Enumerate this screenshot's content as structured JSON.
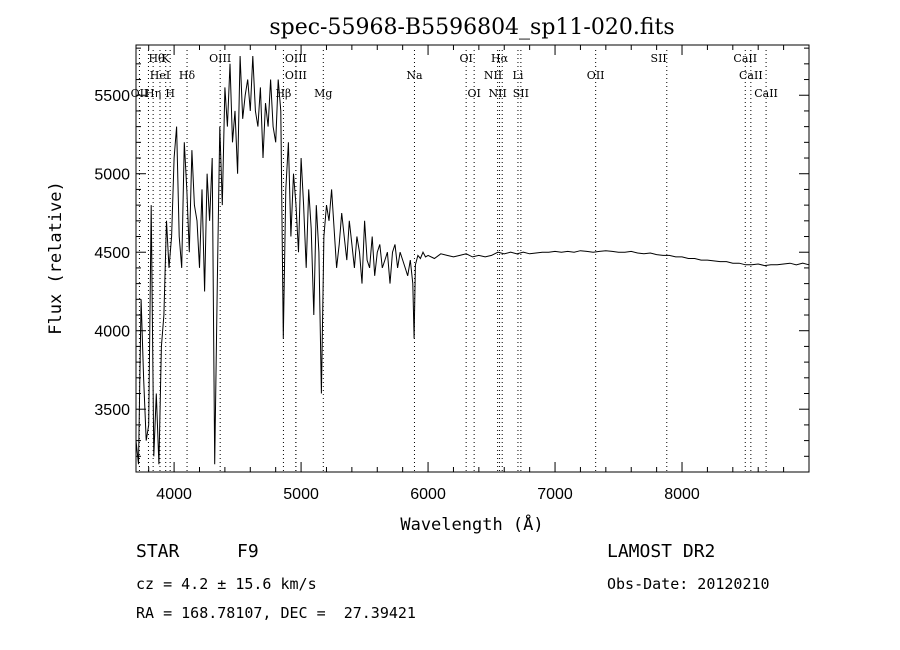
{
  "chart_data": {
    "type": "line",
    "title": "spec-55968-B5596804_sp11-020.fits",
    "xlabel": "Wavelength (Å)",
    "ylabel": "Flux (relative)",
    "xlim": [
      3700,
      9000
    ],
    "ylim": [
      3100,
      5820
    ],
    "x_ticks": [
      4000,
      5000,
      6000,
      7000,
      8000
    ],
    "y_ticks": [
      3500,
      4000,
      4500,
      5000,
      5500
    ],
    "grid": false,
    "series": [
      {
        "x": [
          3700,
          3720,
          3740,
          3760,
          3780,
          3800,
          3820,
          3840,
          3860,
          3880,
          3900,
          3920,
          3940,
          3960,
          3980,
          4000,
          4020,
          4040,
          4060,
          4080,
          4100,
          4120,
          4140,
          4160,
          4180,
          4200,
          4220,
          4240,
          4260,
          4280,
          4300,
          4320,
          4340,
          4360,
          4380,
          4400,
          4420,
          4440,
          4460,
          4480,
          4500,
          4520,
          4540,
          4560,
          4580,
          4600,
          4620,
          4640,
          4660,
          4680,
          4700,
          4720,
          4740,
          4760,
          4780,
          4800,
          4820,
          4840,
          4860,
          4880,
          4900,
          4920,
          4940,
          4960,
          4980,
          5000,
          5020,
          5040,
          5060,
          5080,
          5100,
          5120,
          5140,
          5160,
          5180,
          5200,
          5220,
          5240,
          5260,
          5280,
          5300,
          5320,
          5340,
          5360,
          5380,
          5400,
          5420,
          5440,
          5460,
          5480,
          5500,
          5520,
          5540,
          5560,
          5580,
          5600,
          5620,
          5640,
          5660,
          5680,
          5700,
          5720,
          5740,
          5760,
          5780,
          5800,
          5820,
          5840,
          5860,
          5880,
          5890,
          5900,
          5920,
          5940,
          5960,
          5980,
          6000,
          6050,
          6100,
          6150,
          6200,
          6250,
          6300,
          6350,
          6400,
          6450,
          6500,
          6550,
          6600,
          6650,
          6700,
          6750,
          6800,
          6850,
          6900,
          6950,
          7000,
          7050,
          7100,
          7150,
          7200,
          7250,
          7300,
          7350,
          7400,
          7450,
          7500,
          7550,
          7600,
          7650,
          7700,
          7750,
          7800,
          7850,
          7900,
          7950,
          8000,
          8050,
          8100,
          8150,
          8200,
          8250,
          8300,
          8350,
          8400,
          8450,
          8500,
          8550,
          8600,
          8650,
          8700,
          8750,
          8800,
          8850,
          8900,
          8950,
          9000
        ],
        "y": [
          3300,
          3150,
          4200,
          3700,
          3300,
          3400,
          4800,
          3200,
          3600,
          3150,
          3900,
          4100,
          4700,
          4400,
          4600,
          5100,
          5300,
          4600,
          4400,
          5200,
          4900,
          4500,
          5150,
          4800,
          4700,
          4400,
          4900,
          4250,
          5000,
          4700,
          5100,
          3150,
          4300,
          5300,
          4800,
          5550,
          5300,
          5700,
          5200,
          5400,
          5000,
          5750,
          5350,
          5500,
          5600,
          5400,
          5750,
          5400,
          5300,
          5550,
          5100,
          5450,
          5300,
          5600,
          5300,
          5200,
          5600,
          5400,
          3950,
          4900,
          5200,
          4600,
          5000,
          4800,
          4500,
          5100,
          4800,
          4400,
          4900,
          4650,
          4100,
          4800,
          4500,
          3600,
          4600,
          4800,
          4700,
          4900,
          4650,
          4400,
          4550,
          4750,
          4600,
          4450,
          4700,
          4550,
          4400,
          4600,
          4500,
          4300,
          4700,
          4450,
          4400,
          4600,
          4350,
          4500,
          4550,
          4400,
          4450,
          4500,
          4300,
          4500,
          4550,
          4400,
          4500,
          4450,
          4400,
          4350,
          4450,
          4300,
          3950,
          4420,
          4480,
          4460,
          4500,
          4470,
          4480,
          4460,
          4490,
          4480,
          4470,
          4480,
          4490,
          4470,
          4480,
          4470,
          4480,
          4500,
          4490,
          4500,
          4490,
          4500,
          4490,
          4495,
          4500,
          4500,
          4505,
          4500,
          4505,
          4500,
          4510,
          4505,
          4500,
          4505,
          4510,
          4505,
          4500,
          4500,
          4505,
          4495,
          4490,
          4495,
          4485,
          4480,
          4480,
          4470,
          4470,
          4460,
          4460,
          4450,
          4450,
          4445,
          4440,
          4440,
          4430,
          4430,
          4420,
          4420,
          4425,
          4415,
          4420,
          4420,
          4425,
          4430,
          4420,
          4430,
          4420
        ]
      }
    ],
    "lines": [
      {
        "name": "Hθ",
        "x": 3798,
        "row": 1,
        "anchor": "start"
      },
      {
        "name": "K",
        "x": 3934,
        "row": 1,
        "anchor": "middle"
      },
      {
        "name": "OIII",
        "x": 4363,
        "row": 1,
        "anchor": "middle"
      },
      {
        "name": "OIII",
        "x": 4959,
        "row": 1,
        "anchor": "middle"
      },
      {
        "name": "OI",
        "x": 6300,
        "row": 1,
        "anchor": "middle"
      },
      {
        "name": "Hα",
        "x": 6563,
        "row": 1,
        "anchor": "middle"
      },
      {
        "name": "SII",
        "x": 7880,
        "row": 1,
        "anchor": "end"
      },
      {
        "name": "CaII",
        "x": 8498,
        "row": 1,
        "anchor": "middle"
      },
      {
        "name": "HeI",
        "x": 3889,
        "row": 2,
        "anchor": "middle"
      },
      {
        "name": "Hδ",
        "x": 4102,
        "row": 2,
        "anchor": "middle"
      },
      {
        "name": "OIII",
        "x": 4959,
        "row": 2,
        "anchor": "middle"
      },
      {
        "name": "Na",
        "x": 5893,
        "row": 2,
        "anchor": "middle"
      },
      {
        "name": "NII",
        "x": 6584,
        "row": 2,
        "anchor": "end"
      },
      {
        "name": "Li",
        "x": 6708,
        "row": 2,
        "anchor": "middle"
      },
      {
        "name": "OII",
        "x": 7320,
        "row": 2,
        "anchor": "middle"
      },
      {
        "name": "CaII",
        "x": 8542,
        "row": 2,
        "anchor": "middle"
      },
      {
        "name": "OII",
        "x": 3727,
        "row": 3,
        "anchor": "middle"
      },
      {
        "name": "Hη",
        "x": 3835,
        "row": 3,
        "anchor": "middle"
      },
      {
        "name": "H",
        "x": 3969,
        "row": 3,
        "anchor": "middle"
      },
      {
        "name": "Hβ",
        "x": 4861,
        "row": 3,
        "anchor": "middle"
      },
      {
        "name": "Mg",
        "x": 5175,
        "row": 3,
        "anchor": "middle"
      },
      {
        "name": "OI",
        "x": 6363,
        "row": 3,
        "anchor": "middle"
      },
      {
        "name": "NII",
        "x": 6548,
        "row": 3,
        "anchor": "middle"
      },
      {
        "name": "SII",
        "x": 6731,
        "row": 3,
        "anchor": "middle"
      },
      {
        "name": "CaII",
        "x": 8662,
        "row": 3,
        "anchor": "middle"
      }
    ]
  },
  "footer": {
    "class_label": "STAR",
    "subclass": "F9",
    "survey": "LAMOST DR2",
    "redshift": "cz = 4.2 ± 15.6 km/s",
    "obs_date": "Obs-Date: 20120210",
    "coords": "RA = 168.78107, DEC =  27.39421"
  }
}
